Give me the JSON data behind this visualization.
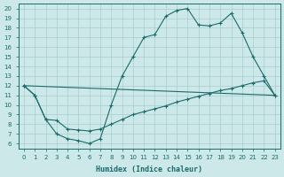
{
  "bg_color": "#cde8e8",
  "grid_color": "#a8cccc",
  "line_color": "#1a6b6b",
  "xlabel": "Humidex (Indice chaleur)",
  "xlim": [
    -0.5,
    23.5
  ],
  "ylim": [
    5.5,
    20.5
  ],
  "xticks": [
    0,
    1,
    2,
    3,
    4,
    5,
    6,
    7,
    8,
    9,
    10,
    11,
    12,
    13,
    14,
    15,
    16,
    17,
    18,
    19,
    20,
    21,
    22,
    23
  ],
  "yticks": [
    6,
    7,
    8,
    9,
    10,
    11,
    12,
    13,
    14,
    15,
    16,
    17,
    18,
    19,
    20
  ],
  "line1_x": [
    0,
    1,
    2,
    3,
    4,
    5,
    6,
    7,
    8,
    9,
    10,
    11,
    12,
    13,
    14,
    15,
    16,
    17,
    18,
    19,
    20,
    21,
    22,
    23
  ],
  "line1_y": [
    12,
    11.0,
    8.5,
    7.0,
    6.5,
    6.3,
    6.0,
    6.5,
    10.0,
    13.0,
    15.0,
    17.0,
    17.3,
    19.2,
    19.8,
    20.0,
    18.3,
    18.2,
    18.5,
    19.5,
    17.5,
    15.0,
    13.0,
    11.0
  ],
  "line2_x": [
    0,
    23
  ],
  "line2_y": [
    12.0,
    11.0
  ],
  "line3_x": [
    0,
    1,
    2,
    3,
    4,
    5,
    6,
    7,
    8,
    9,
    10,
    11,
    12,
    13,
    14,
    15,
    16,
    17,
    18,
    19,
    20,
    21,
    22,
    23
  ],
  "line3_y": [
    12,
    11.0,
    8.5,
    8.4,
    7.5,
    7.4,
    7.3,
    7.5,
    8.0,
    8.5,
    9.0,
    9.3,
    9.6,
    9.9,
    10.3,
    10.6,
    10.9,
    11.2,
    11.5,
    11.7,
    12.0,
    12.3,
    12.5,
    11.0
  ]
}
